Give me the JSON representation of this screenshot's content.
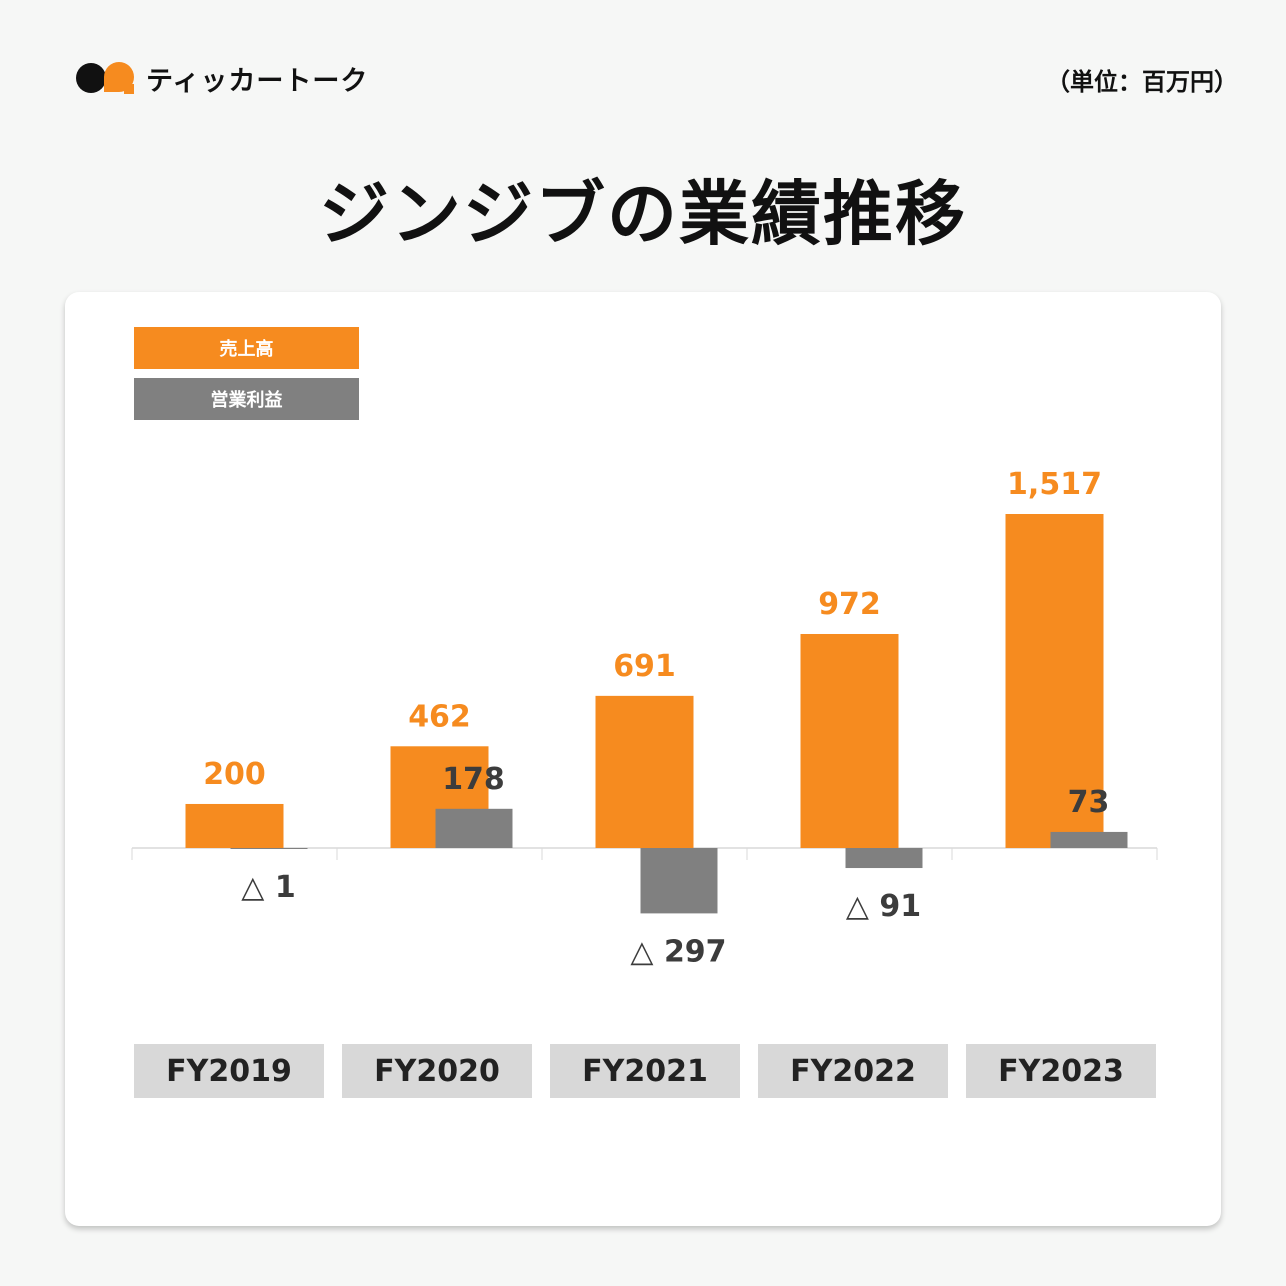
{
  "header": {
    "brand": "ティッカートーク",
    "unit": "（単位：百万円）",
    "title": "ジンジブの業績推移"
  },
  "colors": {
    "sales": "#f68b1f",
    "operating_income": "#808080",
    "text_dark": "#3c3c3c"
  },
  "chart_data": {
    "type": "bar",
    "categories": [
      "FY2019",
      "FY2020",
      "FY2021",
      "FY2022",
      "FY2023"
    ],
    "series": [
      {
        "name": "売上高",
        "values": [
          200,
          462,
          691,
          972,
          1517
        ],
        "labels": [
          "200",
          "462",
          "691",
          "972",
          "1,517"
        ]
      },
      {
        "name": "営業利益",
        "values": [
          -1,
          178,
          -297,
          -91,
          73
        ],
        "labels": [
          "△ 1",
          "178",
          "△ 297",
          "△ 91",
          "73"
        ]
      }
    ],
    "legend": "top-left",
    "grid": false
  }
}
